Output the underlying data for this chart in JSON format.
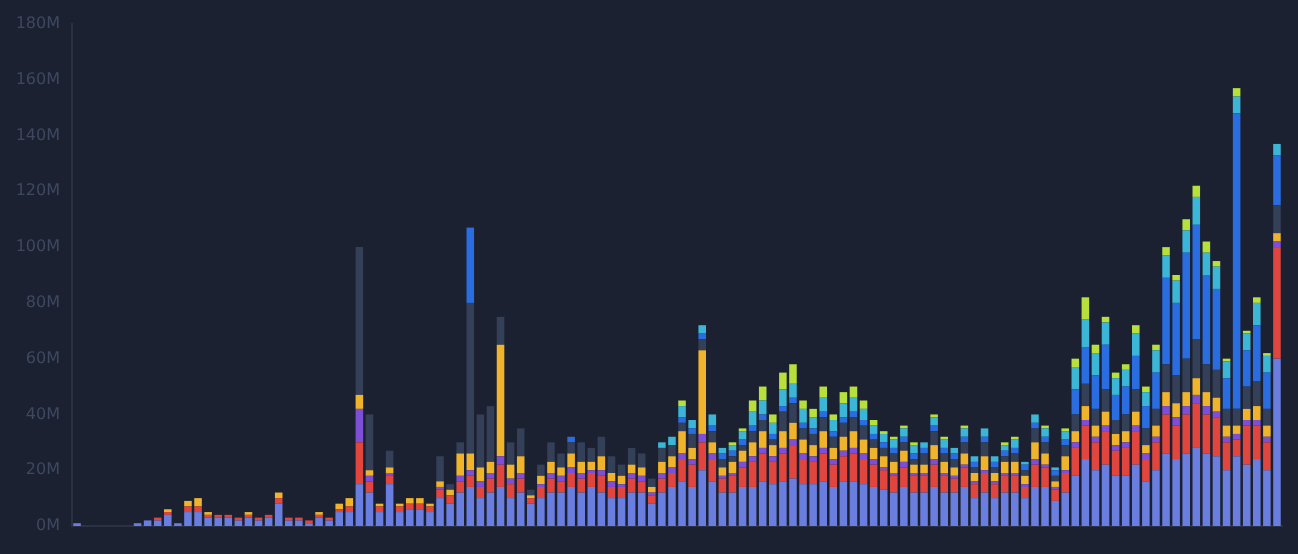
{
  "chart_data": {
    "type": "bar",
    "stacked": true,
    "tick_labels": "y",
    "legend": false,
    "categories": [
      null,
      null,
      null,
      null,
      null,
      null,
      null,
      null,
      null,
      null,
      null,
      null,
      null,
      null,
      null,
      null,
      null,
      null,
      null,
      null,
      null,
      null,
      null,
      null,
      null,
      null,
      null,
      null,
      null,
      null,
      null,
      null,
      null,
      null,
      null,
      null,
      null,
      null,
      null,
      null,
      null,
      null,
      null,
      null,
      null,
      null,
      null,
      null,
      null,
      null,
      null,
      null,
      null,
      null,
      null,
      null,
      null,
      null,
      null,
      null,
      null,
      null,
      null,
      null,
      null,
      null,
      null,
      null,
      null,
      null,
      null,
      null,
      null,
      null,
      null,
      null,
      null,
      null,
      null,
      null,
      null,
      null,
      null,
      null,
      null,
      null,
      null,
      null,
      null,
      null,
      null,
      null,
      null,
      null,
      null,
      null,
      null,
      null,
      null,
      null,
      null,
      null,
      null,
      null,
      null,
      null,
      null,
      null,
      null,
      null,
      null,
      null,
      null,
      null,
      null,
      null,
      null,
      null,
      null,
      null
    ],
    "ylim": [
      0,
      180
    ],
    "yticks": [
      {
        "value": 0,
        "label": "0M"
      },
      {
        "value": 20,
        "label": "20M"
      },
      {
        "value": 40,
        "label": "40M"
      },
      {
        "value": 60,
        "label": "60M"
      },
      {
        "value": 80,
        "label": "80M"
      },
      {
        "value": 100,
        "label": "100M"
      },
      {
        "value": 120,
        "label": "120M"
      },
      {
        "value": 140,
        "label": "140M"
      },
      {
        "value": 160,
        "label": "160M"
      },
      {
        "value": 180,
        "label": "180M"
      }
    ],
    "series": [
      {
        "color": "#6a7ee0",
        "values": [
          1,
          0,
          0,
          0,
          0,
          0,
          1,
          2,
          2,
          4,
          1,
          5,
          5,
          3,
          3,
          3,
          2,
          3,
          2,
          3,
          8,
          2,
          2,
          1,
          3,
          2,
          5,
          5,
          15,
          12,
          5,
          15,
          5,
          6,
          6,
          5,
          10,
          8,
          12,
          14,
          10,
          12,
          14,
          10,
          12,
          8,
          10,
          12,
          12,
          14,
          12,
          14,
          12,
          10,
          10,
          12,
          12,
          8,
          12,
          14,
          16,
          14,
          20,
          16,
          12,
          12,
          14,
          14,
          16,
          15,
          16,
          17,
          15,
          15,
          16,
          14,
          16,
          16,
          15,
          14,
          13,
          12,
          14,
          12,
          12,
          14,
          12,
          12,
          14,
          10,
          12,
          10,
          12,
          12,
          10,
          14,
          14,
          9,
          12,
          18,
          24,
          20,
          22,
          18,
          18,
          22,
          16,
          20,
          26,
          24,
          26,
          28,
          26,
          25,
          20,
          25,
          22,
          24,
          20,
          60
        ]
      },
      {
        "color": "#e0463e",
        "values": [
          0,
          0,
          0,
          0,
          0,
          0,
          0,
          0,
          1,
          1,
          0,
          2,
          2,
          1,
          1,
          1,
          1,
          1,
          1,
          1,
          2,
          1,
          1,
          1,
          1,
          1,
          1,
          2,
          15,
          4,
          2,
          3,
          2,
          2,
          2,
          2,
          3,
          3,
          4,
          4,
          4,
          5,
          8,
          5,
          5,
          2,
          4,
          5,
          4,
          5,
          5,
          5,
          6,
          4,
          4,
          5,
          4,
          3,
          5,
          5,
          8,
          8,
          10,
          8,
          5,
          6,
          7,
          9,
          10,
          8,
          10,
          12,
          9,
          8,
          10,
          8,
          9,
          10,
          9,
          8,
          7,
          6,
          7,
          6,
          6,
          8,
          6,
          5,
          7,
          5,
          7,
          5,
          6,
          6,
          4,
          8,
          7,
          4,
          7,
          10,
          12,
          10,
          12,
          9,
          10,
          12,
          8,
          10,
          14,
          12,
          14,
          16,
          14,
          14,
          10,
          6,
          14,
          12,
          10,
          40
        ]
      },
      {
        "color": "#7d4fd6",
        "values": [
          0,
          0,
          0,
          0,
          0,
          0,
          0,
          0,
          0,
          0,
          0,
          0,
          0,
          0,
          0,
          0,
          0,
          0,
          0,
          0,
          0,
          0,
          0,
          0,
          0,
          0,
          0,
          0,
          12,
          2,
          0,
          1,
          0,
          0,
          0,
          0,
          1,
          0,
          2,
          2,
          2,
          2,
          3,
          2,
          2,
          0,
          1,
          2,
          2,
          2,
          2,
          1,
          2,
          2,
          1,
          2,
          2,
          1,
          2,
          2,
          2,
          2,
          3,
          2,
          1,
          1,
          2,
          2,
          2,
          2,
          2,
          2,
          2,
          2,
          2,
          2,
          2,
          2,
          2,
          2,
          1,
          1,
          2,
          1,
          1,
          2,
          1,
          1,
          1,
          1,
          1,
          1,
          1,
          1,
          1,
          2,
          1,
          1,
          1,
          2,
          2,
          2,
          2,
          2,
          2,
          2,
          2,
          2,
          3,
          3,
          3,
          3,
          3,
          2,
          2,
          2,
          2,
          2,
          2,
          2
        ]
      },
      {
        "color": "#f0b42c",
        "values": [
          0,
          0,
          0,
          0,
          0,
          0,
          0,
          0,
          0,
          1,
          0,
          2,
          3,
          1,
          0,
          0,
          0,
          1,
          0,
          0,
          2,
          0,
          0,
          0,
          1,
          0,
          2,
          3,
          5,
          2,
          1,
          2,
          1,
          2,
          2,
          1,
          2,
          2,
          8,
          6,
          5,
          4,
          40,
          5,
          6,
          1,
          3,
          4,
          3,
          5,
          4,
          3,
          5,
          3,
          3,
          3,
          3,
          2,
          4,
          4,
          8,
          4,
          30,
          4,
          3,
          4,
          4,
          5,
          6,
          4,
          6,
          6,
          5,
          4,
          6,
          4,
          5,
          6,
          5,
          4,
          4,
          4,
          4,
          3,
          3,
          5,
          4,
          3,
          4,
          3,
          5,
          3,
          4,
          4,
          3,
          6,
          4,
          2,
          5,
          4,
          5,
          4,
          5,
          4,
          4,
          5,
          3,
          4,
          5,
          5,
          5,
          6,
          5,
          5,
          4,
          3,
          4,
          5,
          4,
          3
        ]
      },
      {
        "color": "#343f58",
        "values": [
          0,
          0,
          0,
          0,
          0,
          0,
          0,
          0,
          0,
          0,
          0,
          0,
          0,
          0,
          0,
          0,
          0,
          0,
          0,
          0,
          0,
          0,
          0,
          0,
          0,
          0,
          0,
          0,
          53,
          20,
          0,
          6,
          0,
          0,
          0,
          0,
          9,
          2,
          4,
          54,
          19,
          20,
          10,
          8,
          10,
          2,
          4,
          7,
          5,
          4,
          7,
          5,
          7,
          6,
          4,
          6,
          5,
          3,
          5,
          4,
          3,
          5,
          4,
          4,
          3,
          2,
          2,
          4,
          4,
          2,
          7,
          7,
          4,
          4,
          5,
          4,
          5,
          5,
          5,
          3,
          3,
          3,
          3,
          2,
          4,
          5,
          3,
          3,
          4,
          2,
          5,
          2,
          2,
          3,
          2,
          5,
          4,
          2,
          4,
          6,
          8,
          6,
          8,
          5,
          6,
          8,
          6,
          6,
          10,
          10,
          12,
          14,
          10,
          10,
          6,
          6,
          8,
          9,
          6,
          10
        ]
      },
      {
        "color": "#2a6de0",
        "values": [
          0,
          0,
          0,
          0,
          0,
          0,
          0,
          0,
          0,
          0,
          0,
          0,
          0,
          0,
          0,
          0,
          0,
          0,
          0,
          0,
          0,
          0,
          0,
          0,
          0,
          0,
          0,
          0,
          0,
          0,
          0,
          0,
          0,
          0,
          0,
          0,
          0,
          0,
          0,
          27,
          0,
          0,
          0,
          0,
          0,
          0,
          0,
          0,
          0,
          2,
          0,
          0,
          0,
          0,
          0,
          0,
          0,
          0,
          0,
          0,
          2,
          2,
          2,
          2,
          2,
          2,
          2,
          2,
          2,
          2,
          2,
          2,
          2,
          2,
          2,
          2,
          2,
          2,
          2,
          2,
          2,
          2,
          2,
          2,
          2,
          2,
          2,
          2,
          2,
          2,
          2,
          2,
          2,
          2,
          2,
          2,
          2,
          2,
          2,
          9,
          13,
          12,
          16,
          9,
          10,
          12,
          8,
          13,
          31,
          26,
          38,
          41,
          32,
          29,
          11,
          106,
          13,
          20,
          13,
          18
        ]
      },
      {
        "color": "#3cb6d6",
        "values": [
          0,
          0,
          0,
          0,
          0,
          0,
          0,
          0,
          0,
          0,
          0,
          0,
          0,
          0,
          0,
          0,
          0,
          0,
          0,
          0,
          0,
          0,
          0,
          0,
          0,
          0,
          0,
          0,
          0,
          0,
          0,
          0,
          0,
          0,
          0,
          0,
          0,
          0,
          0,
          0,
          0,
          0,
          0,
          0,
          0,
          0,
          0,
          0,
          0,
          0,
          0,
          0,
          0,
          0,
          0,
          0,
          0,
          0,
          2,
          3,
          4,
          3,
          3,
          4,
          2,
          2,
          3,
          5,
          5,
          4,
          6,
          5,
          5,
          4,
          5,
          4,
          5,
          5,
          4,
          3,
          3,
          3,
          3,
          3,
          2,
          3,
          3,
          2,
          3,
          2,
          3,
          2,
          2,
          3,
          1,
          3,
          3,
          1,
          3,
          8,
          10,
          8,
          8,
          6,
          6,
          8,
          5,
          8,
          8,
          8,
          8,
          10,
          8,
          8,
          6,
          6,
          6,
          8,
          6,
          4
        ]
      },
      {
        "color": "#b8e03c",
        "values": [
          0,
          0,
          0,
          0,
          0,
          0,
          0,
          0,
          0,
          0,
          0,
          0,
          0,
          0,
          0,
          0,
          0,
          0,
          0,
          0,
          0,
          0,
          0,
          0,
          0,
          0,
          0,
          0,
          0,
          0,
          0,
          0,
          0,
          0,
          0,
          0,
          0,
          0,
          0,
          0,
          0,
          0,
          0,
          0,
          0,
          0,
          0,
          0,
          0,
          0,
          0,
          0,
          0,
          0,
          0,
          0,
          0,
          0,
          0,
          0,
          2,
          0,
          0,
          0,
          0,
          1,
          1,
          4,
          5,
          3,
          6,
          7,
          3,
          3,
          4,
          2,
          4,
          4,
          3,
          2,
          1,
          1,
          1,
          1,
          0,
          1,
          1,
          0,
          1,
          0,
          0,
          0,
          1,
          1,
          0,
          0,
          1,
          0,
          1,
          3,
          8,
          3,
          2,
          2,
          2,
          3,
          2,
          2,
          3,
          2,
          4,
          4,
          4,
          2,
          1,
          3,
          1,
          2,
          1,
          0
        ]
      }
    ]
  }
}
